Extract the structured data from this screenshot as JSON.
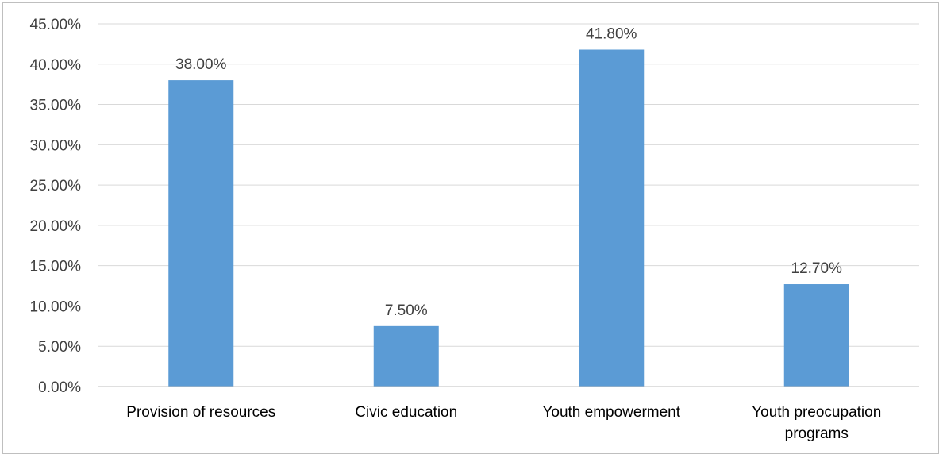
{
  "chart_data": {
    "type": "bar",
    "categories": [
      [
        "Provision of resources"
      ],
      [
        "Civic education"
      ],
      [
        "Youth empowerment"
      ],
      [
        "Youth preocupation",
        "programs"
      ]
    ],
    "values": [
      38.0,
      7.5,
      41.8,
      12.7
    ],
    "value_labels": [
      "38.00%",
      "7.50%",
      "41.80%",
      "12.70%"
    ],
    "y_ticks": [
      {
        "value": 0,
        "label": "0.00%"
      },
      {
        "value": 5,
        "label": "5.00%"
      },
      {
        "value": 10,
        "label": "10.00%"
      },
      {
        "value": 15,
        "label": "15.00%"
      },
      {
        "value": 20,
        "label": "20.00%"
      },
      {
        "value": 25,
        "label": "25.00%"
      },
      {
        "value": 30,
        "label": "30.00%"
      },
      {
        "value": 35,
        "label": "35.00%"
      },
      {
        "value": 40,
        "label": "40.00%"
      },
      {
        "value": 45,
        "label": "45.00%"
      }
    ],
    "ylim": [
      0,
      45
    ],
    "grid": true,
    "title": "",
    "xlabel": "",
    "ylabel": "",
    "colors": {
      "bar": "#5B9BD5",
      "grid": "#d9d9d9",
      "axis": "#bfbfbf"
    }
  }
}
